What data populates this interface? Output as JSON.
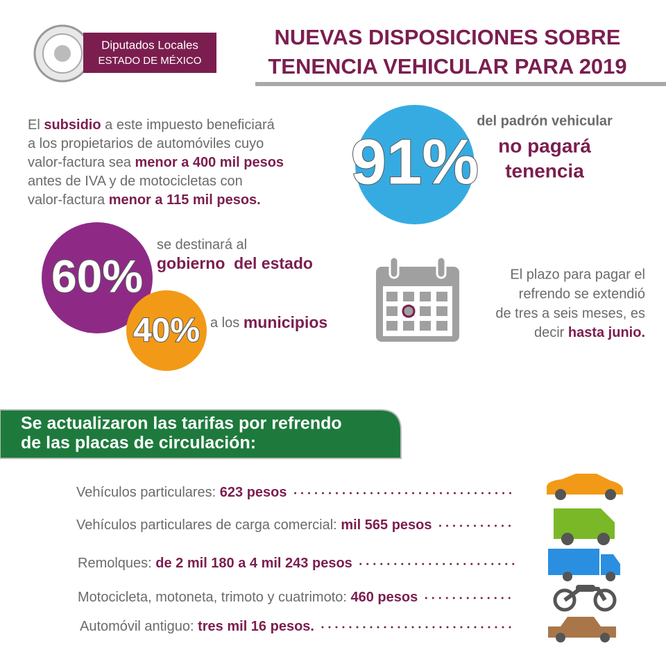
{
  "header": {
    "logo_line1": "Diputados Locales",
    "logo_line2": "ESTADO DE MÉXICO",
    "title_line1": "NUEVAS DISPOSICIONES SOBRE",
    "title_line2": "TENENCIA VEHICULAR PARA 2019"
  },
  "subsidy": {
    "lines": [
      [
        "El ",
        "subsidio",
        " a este impuesto beneficiará"
      ],
      [
        "a los propietarios de automóviles cuyo"
      ],
      [
        "valor-factura sea ",
        "menor a 400 mil pesos"
      ],
      [
        "antes de IVA y de motocicletas con"
      ],
      [
        "valor-factura ",
        "menor a 115 mil pesos."
      ]
    ]
  },
  "padron": {
    "percent": "91%",
    "line1": "del padrón vehicular",
    "line2": "no pagará",
    "line3": "tenencia"
  },
  "distribution": {
    "state_percent": "60%",
    "state_line1": "se destinará al",
    "state_line2": "gobierno  del estado",
    "municipal_percent": "40%",
    "municipal_prefix": "a los ",
    "municipal_bold": "municipios"
  },
  "deadline": {
    "lines": [
      "El plazo para pagar el",
      "refrendo se extendió",
      "de tres a seis meses, es"
    ],
    "last_prefix": "decir ",
    "last_bold": "hasta junio."
  },
  "banner": {
    "line1": "Se actualizaron las tarifas por refrendo",
    "line2": "de las placas de circulación:"
  },
  "tariffs": [
    {
      "label": "Vehículos particulares: ",
      "amount": "623 pesos"
    },
    {
      "label": "Vehículos particulares de carga comercial: ",
      "amount": "mil 565 pesos"
    },
    {
      "label": "Remolques: ",
      "amount": "de 2 mil 180 a 4 mil 243 pesos"
    },
    {
      "label": "Motocicleta, motoneta, trimoto y cuatrimoto: ",
      "amount": "460 pesos"
    },
    {
      "label": "Automóvil antiguo: ",
      "amount": "tres mil 16 pesos."
    }
  ]
}
